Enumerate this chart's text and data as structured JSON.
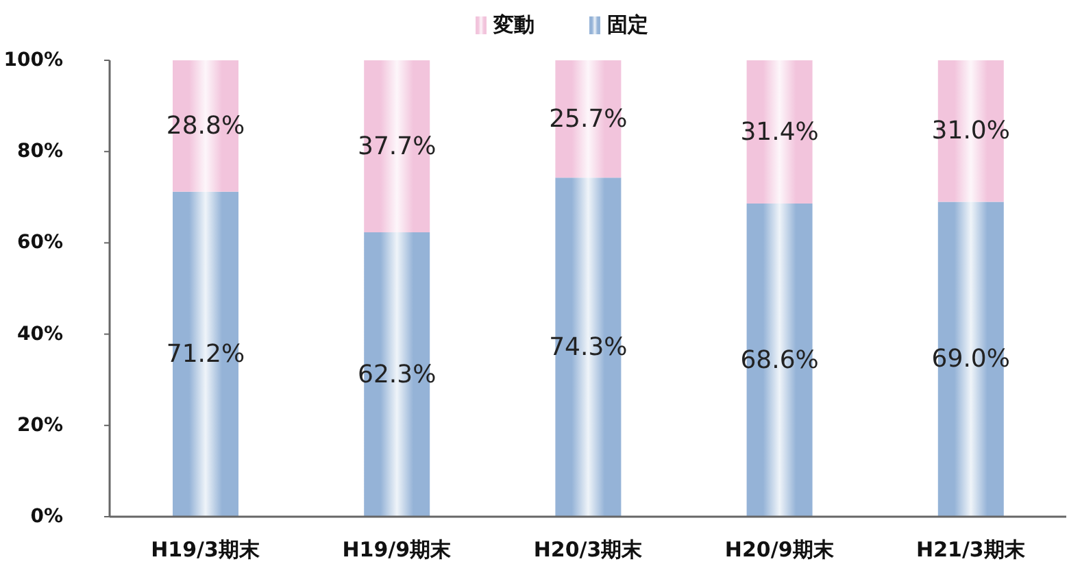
{
  "chart_data": {
    "type": "bar",
    "stacked": true,
    "legend": "top",
    "categories": [
      "H19/3期末",
      "H19/9期末",
      "H20/3期末",
      "H20/9期末",
      "H21/3期末"
    ],
    "series": [
      {
        "name": "固定",
        "color": "#95b3d7",
        "values": [
          71.2,
          62.3,
          74.3,
          68.6,
          69.0
        ],
        "value_labels": [
          "71.2%",
          "62.3%",
          "74.3%",
          "68.6%",
          "69.0%"
        ]
      },
      {
        "name": "変動",
        "color": "#f2c4dc",
        "values": [
          28.8,
          37.7,
          25.7,
          31.4,
          31.0
        ],
        "value_labels": [
          "28.8%",
          "37.7%",
          "25.7%",
          "31.4%",
          "31.0%"
        ]
      }
    ],
    "ylim": [
      0,
      100
    ],
    "yticks": [
      {
        "value": 0,
        "label": "0%"
      },
      {
        "value": 20,
        "label": "20%"
      },
      {
        "value": 40,
        "label": "40%"
      },
      {
        "value": 60,
        "label": "60%"
      },
      {
        "value": 80,
        "label": "80%"
      },
      {
        "value": 100,
        "label": "100%"
      }
    ]
  }
}
